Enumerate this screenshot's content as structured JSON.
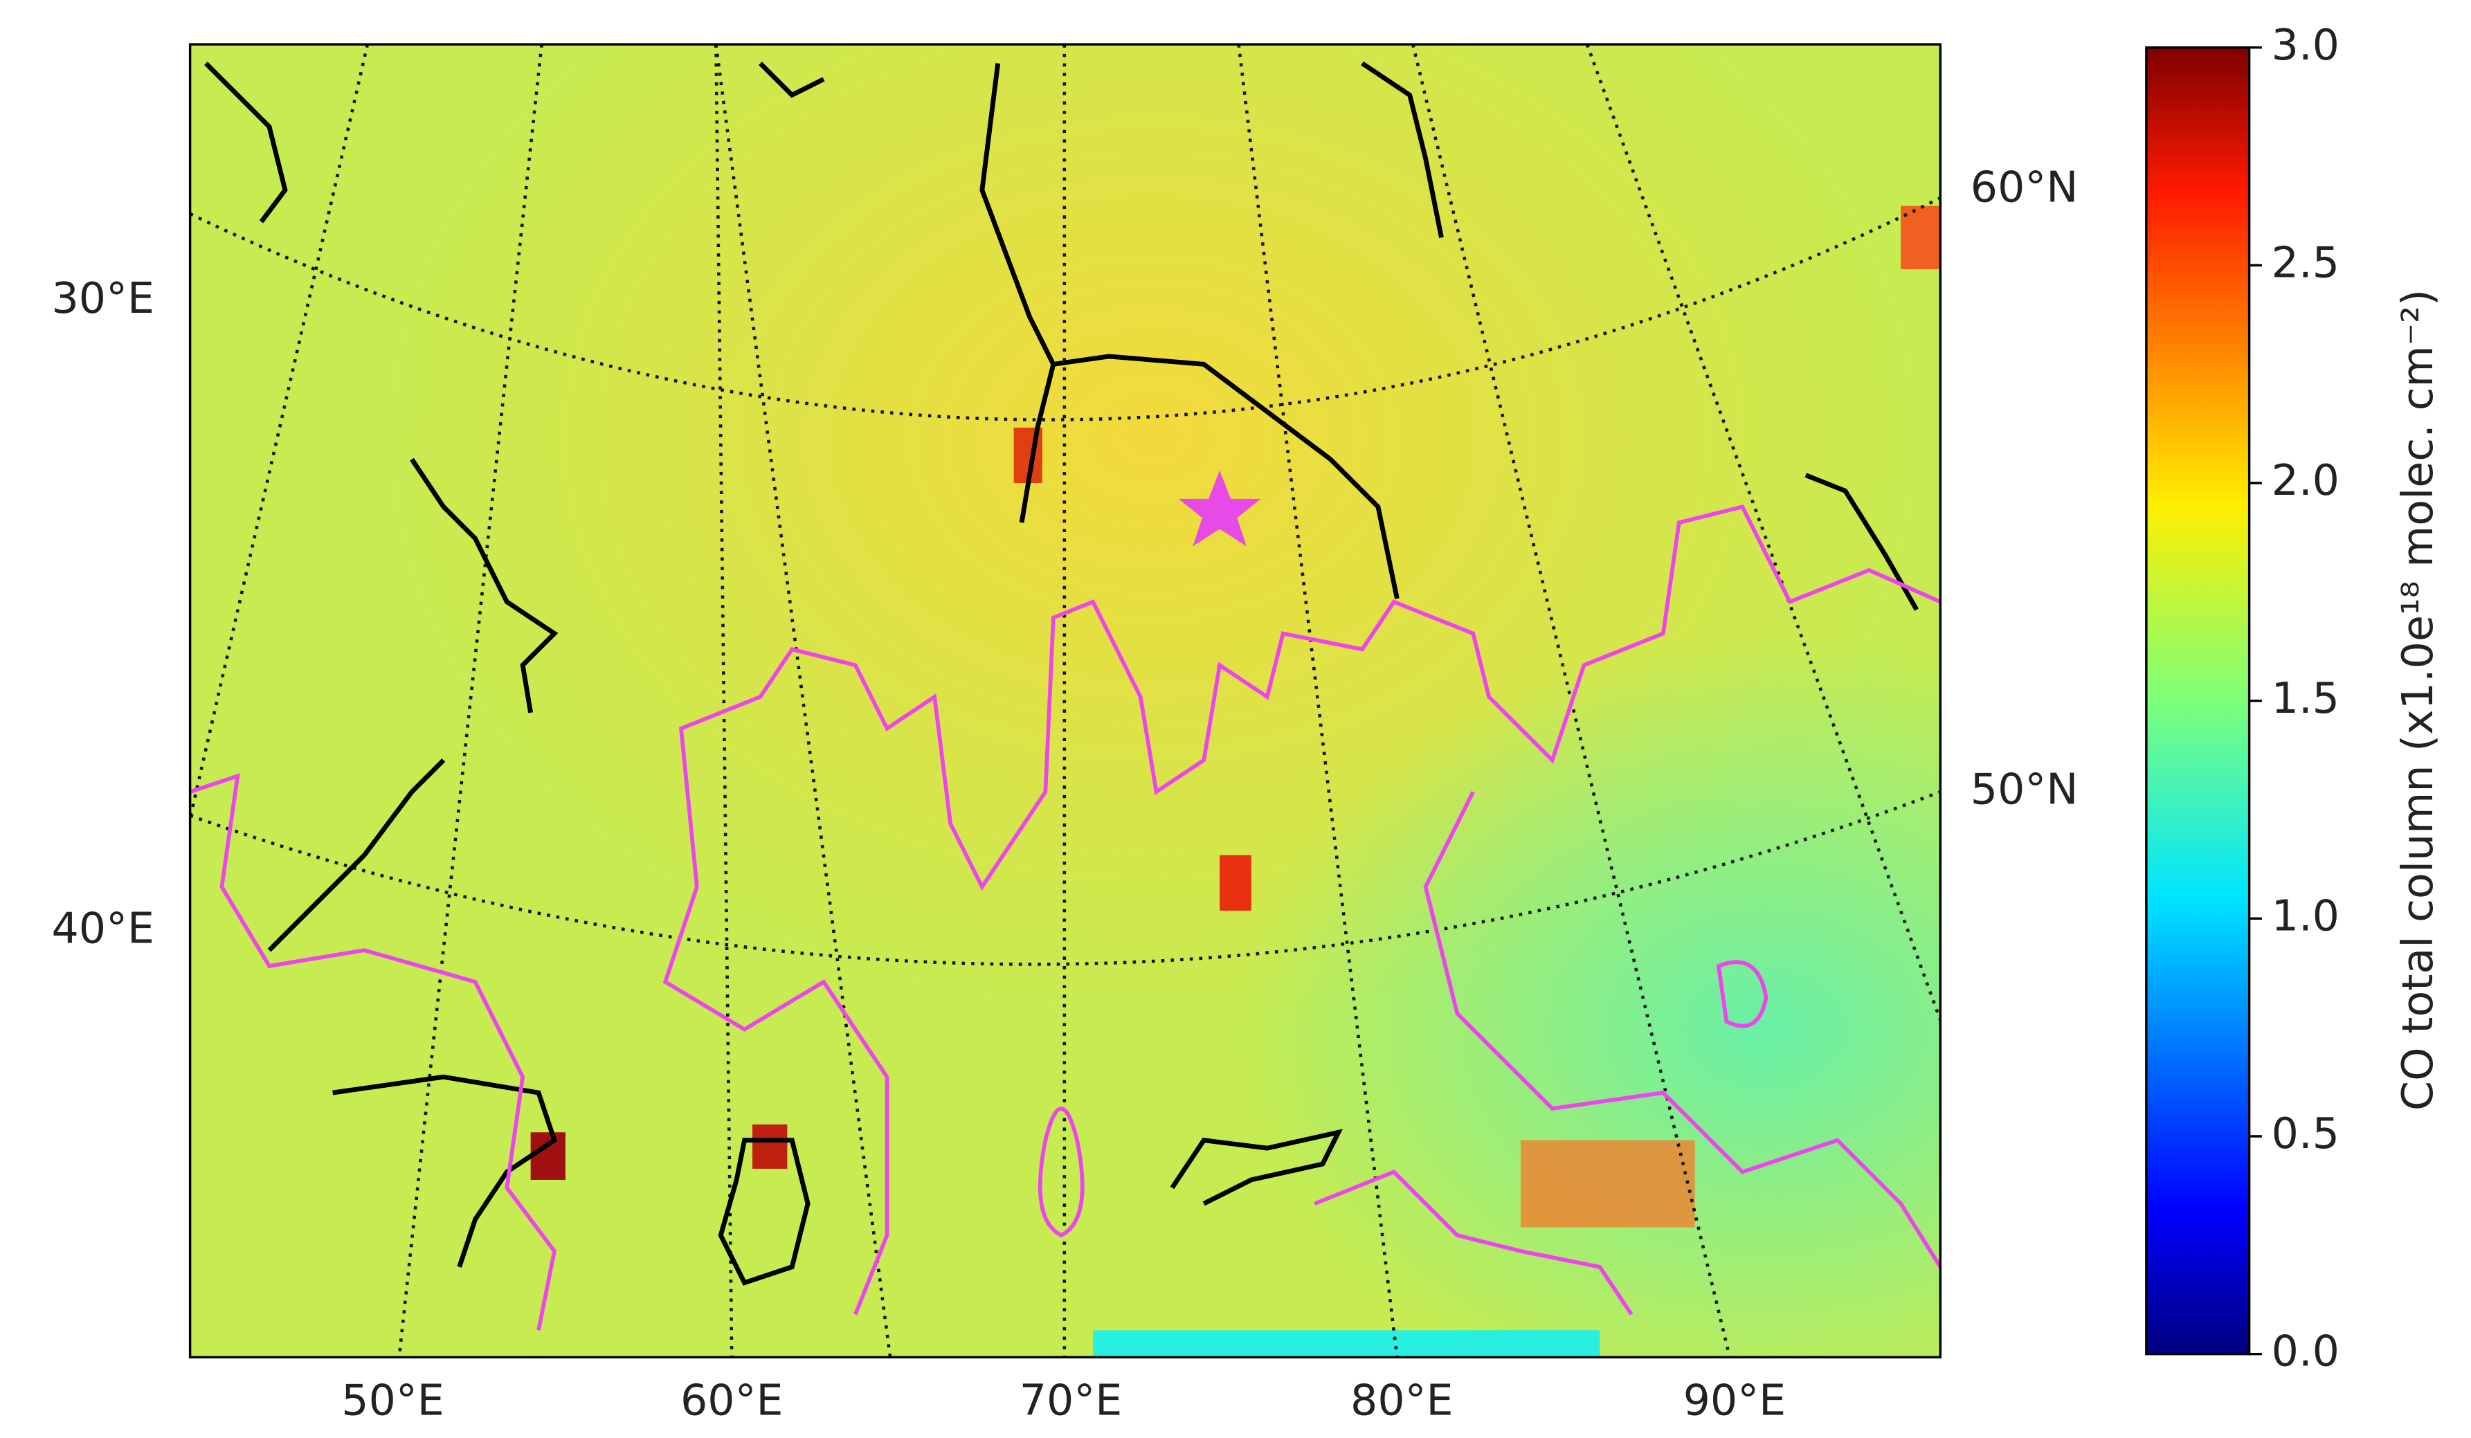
{
  "map": {
    "labels_left": [
      "30°E",
      "40°E"
    ],
    "labels_right": [
      "60°N",
      "50°N"
    ],
    "labels_bottom": [
      "50°E",
      "60°E",
      "70°E",
      "80°E",
      "90°E"
    ]
  },
  "colorbar": {
    "label": "CO total column (x1.0e¹⁸ molec. cm⁻²)",
    "colormap": "jet",
    "lim": [
      0,
      3
    ],
    "ticks": [
      {
        "value": 0,
        "label": "0.0"
      },
      {
        "value": 0.5,
        "label": "0.5"
      },
      {
        "value": 1,
        "label": "1.0"
      },
      {
        "value": 1.5,
        "label": "1.5"
      },
      {
        "value": 2,
        "label": "2.0"
      },
      {
        "value": 2.5,
        "label": "2.5"
      },
      {
        "value": 3,
        "label": "3.0"
      }
    ]
  }
}
